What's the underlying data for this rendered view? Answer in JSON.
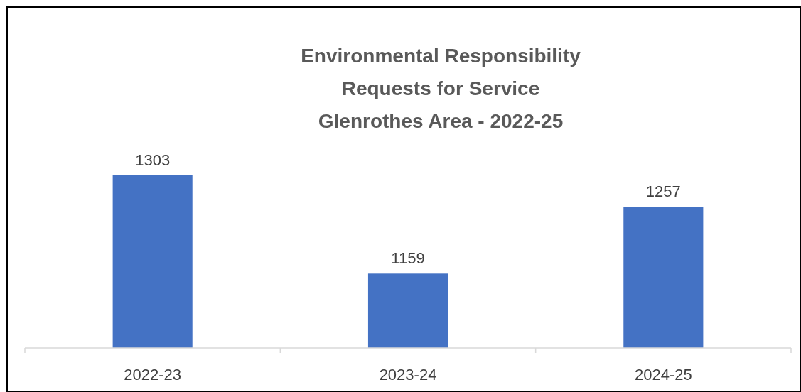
{
  "chart_data": {
    "type": "bar",
    "title": "Environmental Responsibility\nRequests for Service\nGlenrothes Area - 2022-25",
    "categories": [
      "2022-23",
      "2023-24",
      "2024-25"
    ],
    "values": [
      1303,
      1159,
      1257
    ],
    "color": "#4472c4",
    "ylim": [
      1050,
      1303
    ],
    "data_labels": true
  }
}
